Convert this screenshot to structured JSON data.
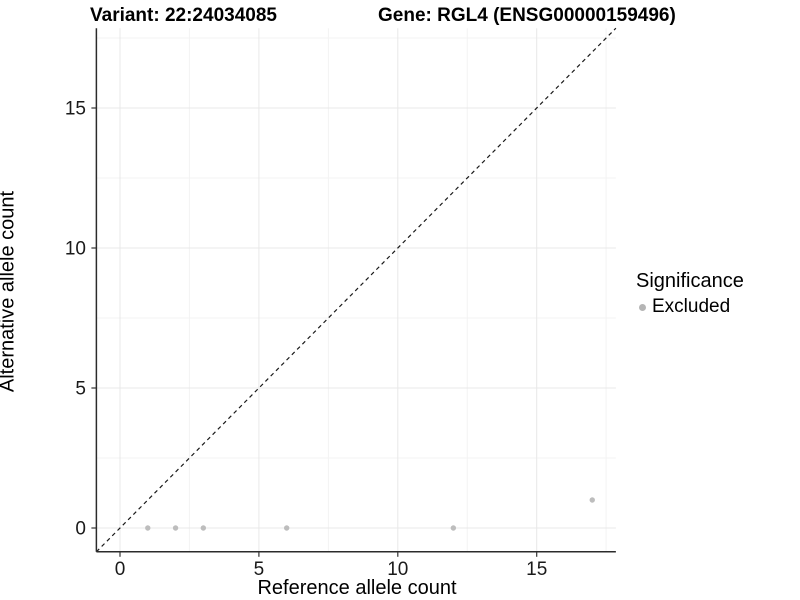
{
  "chart_data": {
    "type": "scatter",
    "title_left": "Variant: 22:24034085",
    "title_right": "Gene: RGL4 (ENSG00000159496)",
    "xlabel": "Reference allele count",
    "ylabel": "Alternative allele count",
    "xlim": [
      -0.85,
      17.85
    ],
    "ylim": [
      -0.85,
      17.85
    ],
    "x_ticks": [
      0,
      5,
      10,
      15
    ],
    "y_ticks": [
      0,
      5,
      10,
      15
    ],
    "x_minor_ticks": [
      2.5,
      7.5,
      12.5,
      17.5
    ],
    "y_minor_ticks": [
      2.5,
      7.5,
      12.5,
      17.5
    ],
    "grid": "on",
    "identity_line": {
      "type": "dashed",
      "from": "bottom-left",
      "to": "top-right",
      "equation": "y = x"
    },
    "series": [
      {
        "name": "Excluded",
        "points": [
          [
            1,
            0
          ],
          [
            2,
            0
          ],
          [
            3,
            0
          ],
          [
            6,
            0
          ],
          [
            12,
            0
          ],
          [
            17,
            1
          ]
        ]
      }
    ],
    "legend": {
      "position": "right",
      "title": "Significance",
      "items": [
        {
          "label": "Excluded",
          "color": "#b5b5b5"
        }
      ]
    },
    "colors": {
      "point": "#bdbdbd",
      "grid_major": "#e8e8e8",
      "grid_minor": "#f3f3f3",
      "axis_line": "#2b2b2b",
      "tick_mark": "#333333",
      "tick_label": "#1a1a1a",
      "identity_line": "#1a1a1a",
      "background": "#ffffff"
    }
  }
}
